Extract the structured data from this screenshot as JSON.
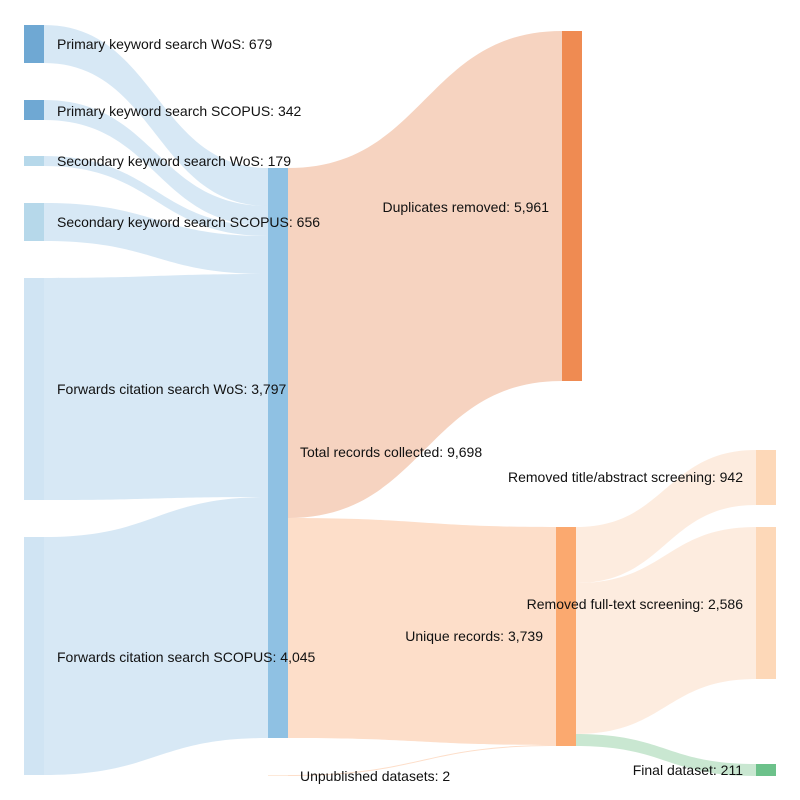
{
  "chart_data": {
    "type": "sankey",
    "nodes": [
      {
        "id": "pk_wos",
        "label": "Primary keyword search WoS",
        "value": 679,
        "color": "#6fa8d3"
      },
      {
        "id": "pk_sco",
        "label": "Primary keyword search SCOPUS",
        "value": 342,
        "color": "#6fa8d3"
      },
      {
        "id": "sk_wos",
        "label": "Secondary keyword search WoS",
        "value": 179,
        "color": "#b6d8ea"
      },
      {
        "id": "sk_sco",
        "label": "Secondary keyword search SCOPUS",
        "value": 656,
        "color": "#b6d8ea"
      },
      {
        "id": "fc_wos",
        "label": "Forwards citation search WoS",
        "value": 3797,
        "color": "#d0e4f3"
      },
      {
        "id": "fc_sco",
        "label": "Forwards citation search SCOPUS",
        "value": 4045,
        "color": "#d0e4f3"
      },
      {
        "id": "unpub",
        "label": "Unpublished datasets",
        "value": 2,
        "color": "#fde9d9"
      },
      {
        "id": "total",
        "label": "Total records collected",
        "value": 9698,
        "color": "#8fc1e3"
      },
      {
        "id": "dups",
        "label": "Duplicates removed",
        "value": 5961,
        "color": "#ef8b52"
      },
      {
        "id": "unique",
        "label": "Unique records",
        "value": 3739,
        "color": "#fba96f"
      },
      {
        "id": "rm_title",
        "label": "Removed title/abstract screening",
        "value": 942,
        "color": "#fdd8b8"
      },
      {
        "id": "rm_full",
        "label": "Removed full-text screening",
        "value": 2586,
        "color": "#fdd8b8"
      },
      {
        "id": "final",
        "label": "Final dataset",
        "value": 211,
        "color": "#6cc18a"
      }
    ],
    "links": [
      {
        "source": "pk_wos",
        "target": "total",
        "value": 679,
        "color": "#d0e4f3"
      },
      {
        "source": "pk_sco",
        "target": "total",
        "value": 342,
        "color": "#d0e4f3"
      },
      {
        "source": "sk_wos",
        "target": "total",
        "value": 179,
        "color": "#d0e4f3"
      },
      {
        "source": "sk_sco",
        "target": "total",
        "value": 656,
        "color": "#d0e4f3"
      },
      {
        "source": "fc_wos",
        "target": "total",
        "value": 3797,
        "color": "#d0e4f3"
      },
      {
        "source": "fc_sco",
        "target": "total",
        "value": 4045,
        "color": "#d0e4f3"
      },
      {
        "source": "total",
        "target": "dups",
        "value": 5961,
        "color": "#f5cbb5"
      },
      {
        "source": "total",
        "target": "unique",
        "value": 3737,
        "color": "#fdd8c0"
      },
      {
        "source": "unpub",
        "target": "unique",
        "value": 2,
        "color": "#fdd8c0"
      },
      {
        "source": "unique",
        "target": "rm_title",
        "value": 942,
        "color": "#fde9d9"
      },
      {
        "source": "unique",
        "target": "rm_full",
        "value": 2586,
        "color": "#fde9d9"
      },
      {
        "source": "unique",
        "target": "final",
        "value": 211,
        "color": "#bfe3c9"
      }
    ]
  }
}
